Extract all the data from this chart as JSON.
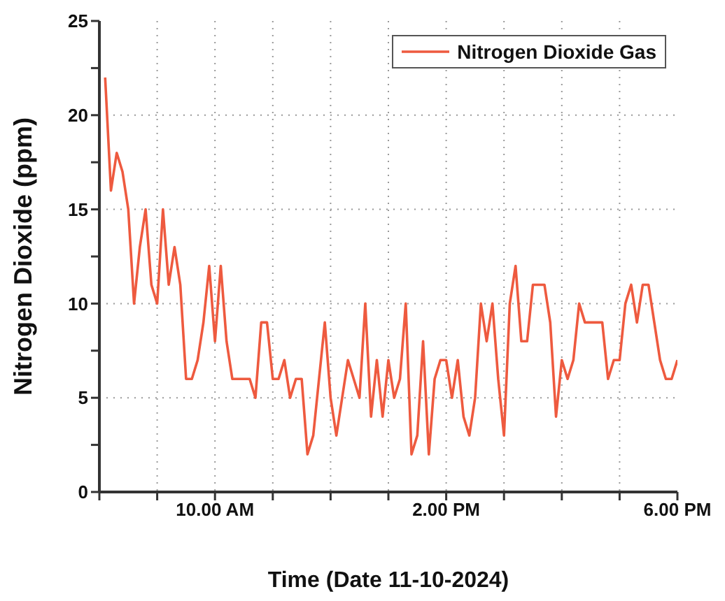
{
  "chart_data": {
    "type": "line",
    "xlabel": "Time (Date 11-10-2024)",
    "ylabel": "Nitrogen Dioxide (ppm)",
    "categories": [
      null,
      null,
      null,
      null,
      null,
      null,
      null,
      null,
      null,
      null,
      null,
      null,
      null,
      null,
      null,
      null,
      null,
      null,
      null,
      "10.00 AM",
      null,
      null,
      null,
      null,
      null,
      null,
      null,
      null,
      null,
      null,
      null,
      null,
      null,
      null,
      null,
      null,
      null,
      null,
      null,
      null,
      null,
      null,
      null,
      null,
      null,
      null,
      null,
      null,
      null,
      null,
      null,
      null,
      null,
      null,
      null,
      null,
      null,
      null,
      null,
      "2.00 PM",
      null,
      null,
      null,
      null,
      null,
      null,
      null,
      null,
      null,
      null,
      null,
      null,
      null,
      null,
      null,
      null,
      null,
      null,
      null,
      null,
      null,
      null,
      null,
      null,
      null,
      null,
      null,
      null,
      null,
      null,
      null,
      null,
      null,
      null,
      null,
      null,
      null,
      null,
      null,
      "6.00 PM"
    ],
    "series": [
      {
        "name": "Nitrogen Dioxide Gas",
        "color": "#ee5a3f",
        "values": [
          22,
          16,
          18,
          17,
          15,
          10,
          13,
          15,
          11,
          10,
          15,
          11,
          13,
          11,
          6,
          6,
          7,
          9,
          12,
          8,
          12,
          8,
          6,
          6,
          6,
          6,
          5,
          9,
          9,
          6,
          6,
          7,
          5,
          6,
          6,
          2,
          3,
          6,
          9,
          5,
          3,
          5,
          7,
          6,
          5,
          10,
          4,
          7,
          4,
          7,
          5,
          6,
          10,
          2,
          3,
          8,
          2,
          6,
          7,
          7,
          5,
          7,
          4,
          3,
          5,
          10,
          8,
          10,
          6,
          3,
          10,
          12,
          8,
          8,
          11,
          11,
          11,
          9,
          4,
          7,
          6,
          7,
          10,
          9,
          9,
          9,
          9,
          6,
          7,
          7,
          10,
          11,
          9,
          11,
          11,
          9,
          7,
          6,
          6,
          7
        ]
      }
    ],
    "ylim": [
      0,
      25
    ],
    "yticks": [
      0,
      {
        "value": 2.5,
        "label": null
      },
      5,
      {
        "value": 7.5,
        "label": null
      },
      10,
      {
        "value": 12.5,
        "label": null
      },
      15,
      {
        "value": 17.5,
        "label": null
      },
      20,
      {
        "value": 22.5,
        "label": null
      },
      25
    ],
    "grid": true,
    "legend": "top right",
    "marker": "none",
    "line_style": "solid"
  }
}
